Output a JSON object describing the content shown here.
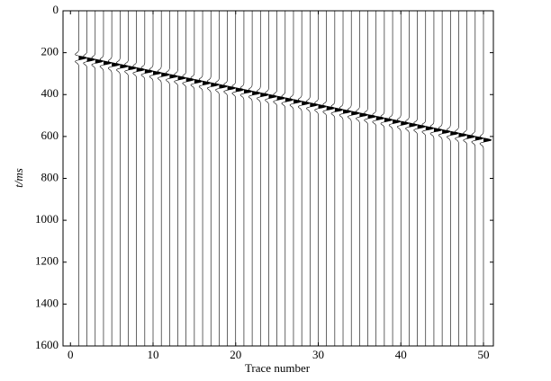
{
  "chart_data": {
    "type": "wiggle",
    "x_label": "Trace number",
    "y_label": "t/ms",
    "traces": [
      1,
      2,
      3,
      4,
      5,
      6,
      7,
      8,
      9,
      10,
      11,
      12,
      13,
      14,
      15,
      16,
      17,
      18,
      19,
      20,
      21,
      22,
      23,
      24,
      25,
      26,
      27,
      28,
      29,
      30,
      31,
      32,
      33,
      34,
      35,
      36,
      37,
      38,
      39,
      40,
      41,
      42,
      43,
      44,
      45,
      46,
      47,
      48,
      49,
      50
    ],
    "event_times": [
      225,
      233,
      241,
      249,
      257,
      265,
      273,
      281,
      289,
      297,
      305,
      313,
      321,
      329,
      337,
      345,
      353,
      361,
      369,
      377,
      385,
      393,
      401,
      409,
      417,
      425,
      433,
      441,
      449,
      457,
      465,
      473,
      481,
      489,
      497,
      505,
      513,
      521,
      529,
      537,
      545,
      553,
      561,
      569,
      577,
      585,
      593,
      601,
      609,
      617
    ],
    "color": "#000000",
    "xlim": [
      -0.9,
      51.2
    ],
    "xticks": [
      0,
      10,
      20,
      30,
      40,
      50
    ],
    "ylim": [
      0,
      1600
    ],
    "yticks": [
      0,
      200,
      400,
      600,
      800,
      1000,
      1200,
      1400,
      1600
    ],
    "y_inverted": true
  }
}
